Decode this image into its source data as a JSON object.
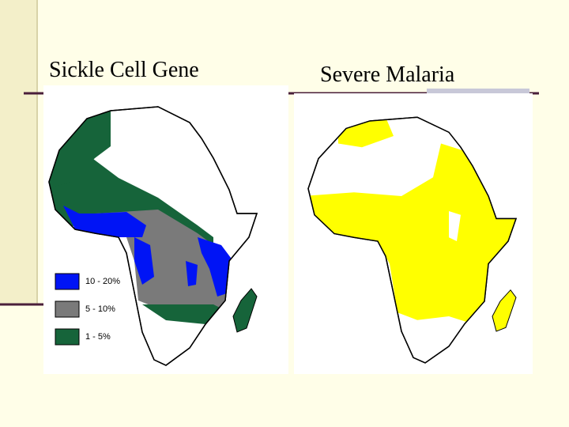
{
  "slide": {
    "left_title": "Sickle Cell Gene",
    "right_title": "Severe Malaria",
    "legend": [
      "10 - 20%",
      "5 - 10%",
      "1 - 5%"
    ]
  }
}
